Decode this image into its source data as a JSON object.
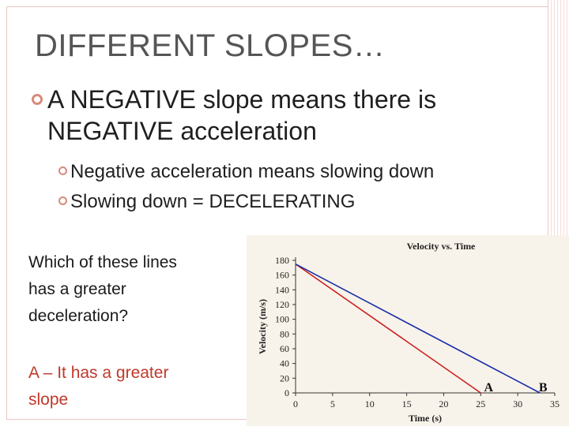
{
  "slide": {
    "title": "DIFFERENT SLOPES…",
    "bullet1_line1": "A NEGATIVE slope means there is",
    "bullet1_line2": "NEGATIVE acceleration",
    "sub_bullets": [
      "Negative acceleration means slowing down",
      "Slowing down = DECELERATING"
    ],
    "question_lines": [
      "Which of these lines",
      "has a greater",
      "deceleration?"
    ],
    "answer_lines": [
      "A – It has a greater",
      "slope"
    ],
    "accent_color": "#d78a7c"
  },
  "chart_data": {
    "type": "line",
    "title": "Velocity vs. Time",
    "xlabel": "Time (s)",
    "ylabel": "Velocity (m/s)",
    "xlim": [
      0,
      35
    ],
    "ylim": [
      0,
      180
    ],
    "x_ticks": [
      0,
      5,
      10,
      15,
      20,
      25,
      30,
      35
    ],
    "y_ticks": [
      0,
      20,
      40,
      60,
      80,
      100,
      120,
      140,
      160,
      180
    ],
    "grid": false,
    "series": [
      {
        "name": "A",
        "color": "#cc2020",
        "x": [
          0,
          25
        ],
        "y": [
          175,
          0
        ]
      },
      {
        "name": "B",
        "color": "#1a2fa8",
        "x": [
          0,
          33
        ],
        "y": [
          175,
          0
        ]
      }
    ],
    "annotations": [
      "A",
      "B"
    ]
  }
}
